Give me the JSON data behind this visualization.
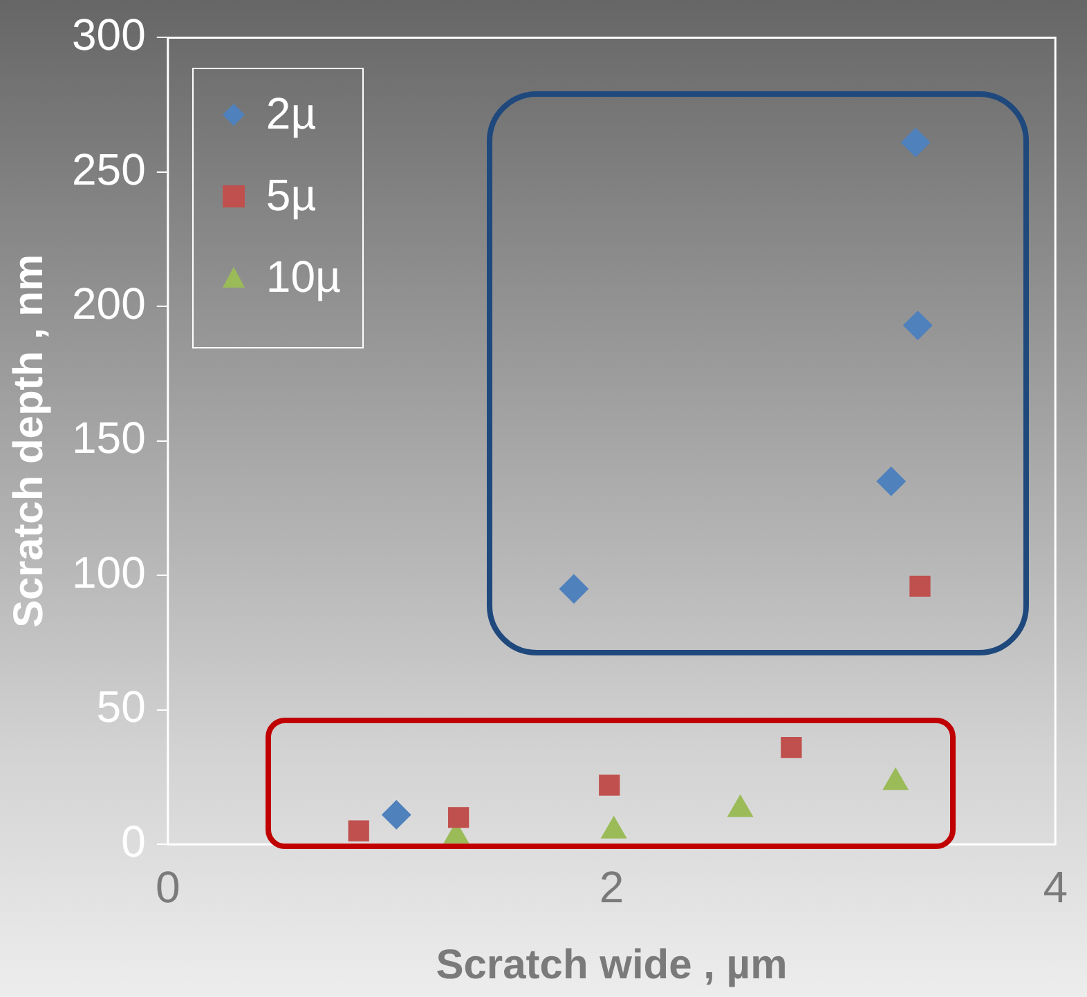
{
  "chart_data": {
    "type": "scatter",
    "xlabel": "Scratch wide , µm",
    "ylabel": "Scratch depth , nm",
    "xlim": [
      0,
      4
    ],
    "xticks": [
      0,
      2,
      4
    ],
    "ylim": [
      0,
      300
    ],
    "yticks": [
      0,
      50,
      100,
      150,
      200,
      250,
      300
    ],
    "grid": false,
    "legend": "top left",
    "series": [
      {
        "name": "2µ",
        "color": "#4f81bd",
        "marker": "diamond",
        "x": [
          1.03,
          1.83,
          3.26,
          3.38,
          3.37
        ],
        "values": [
          11,
          95,
          135,
          193,
          261
        ]
      },
      {
        "name": "5µ",
        "color": "#c0504d",
        "marker": "square",
        "x": [
          0.86,
          1.31,
          1.99,
          2.81,
          3.39
        ],
        "values": [
          5,
          10,
          22,
          36,
          96
        ]
      },
      {
        "name": "10µ",
        "color": "#9bbb59",
        "marker": "triangle",
        "x": [
          1.3,
          2.01,
          2.58,
          3.28
        ],
        "values": [
          3,
          5,
          13,
          23
        ]
      }
    ]
  }
}
